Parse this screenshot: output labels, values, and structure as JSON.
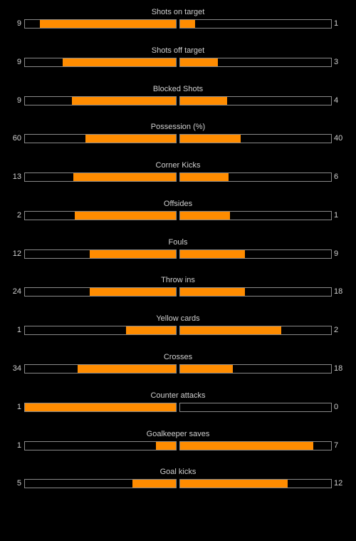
{
  "colors": {
    "background": "#000000",
    "bar_fill": "#ff8c00",
    "bar_border": "#8a8a8a",
    "text": "#d0d0d0"
  },
  "stats": [
    {
      "label": "Shots on target",
      "home": "9",
      "away": "1",
      "home_fill": 0.9,
      "away_fill": 0.1
    },
    {
      "label": "Shots off target",
      "home": "9",
      "away": "3",
      "home_fill": 0.75,
      "away_fill": 0.25
    },
    {
      "label": "Blocked Shots",
      "home": "9",
      "away": "4",
      "home_fill": 0.69,
      "away_fill": 0.31
    },
    {
      "label": "Possession (%)",
      "home": "60",
      "away": "40",
      "home_fill": 0.6,
      "away_fill": 0.4
    },
    {
      "label": "Corner Kicks",
      "home": "13",
      "away": "6",
      "home_fill": 0.68,
      "away_fill": 0.32
    },
    {
      "label": "Offsides",
      "home": "2",
      "away": "1",
      "home_fill": 0.67,
      "away_fill": 0.33
    },
    {
      "label": "Fouls",
      "home": "12",
      "away": "9",
      "home_fill": 0.57,
      "away_fill": 0.43
    },
    {
      "label": "Throw ins",
      "home": "24",
      "away": "18",
      "home_fill": 0.57,
      "away_fill": 0.43
    },
    {
      "label": "Yellow cards",
      "home": "1",
      "away": "2",
      "home_fill": 0.33,
      "away_fill": 0.67
    },
    {
      "label": "Crosses",
      "home": "34",
      "away": "18",
      "home_fill": 0.65,
      "away_fill": 0.35
    },
    {
      "label": "Counter attacks",
      "home": "1",
      "away": "0",
      "home_fill": 1.0,
      "away_fill": 0.0
    },
    {
      "label": "Goalkeeper saves",
      "home": "1",
      "away": "7",
      "home_fill": 0.13,
      "away_fill": 0.88
    },
    {
      "label": "Goal kicks",
      "home": "5",
      "away": "12",
      "home_fill": 0.29,
      "away_fill": 0.71
    }
  ]
}
